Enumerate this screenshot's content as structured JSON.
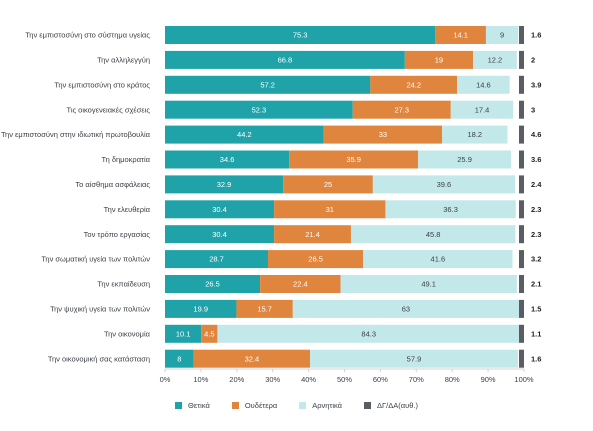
{
  "chart_data": {
    "type": "bar",
    "orientation": "horizontal",
    "stacked": true,
    "title": "",
    "xlabel": "",
    "ylabel": "",
    "xlim": [
      0,
      100
    ],
    "x_ticks": [
      "0%",
      "10%",
      "20%",
      "30%",
      "40%",
      "50%",
      "60%",
      "70%",
      "80%",
      "90%",
      "100%"
    ],
    "categories": [
      "Την εμπιστοσύνη στο σύστημα υγείας",
      "Την αλληλεγγύη",
      "Την εμπιστοσύνη στο κράτος",
      "Τις οικογενειακές σχέσεις",
      "Την εμπιστοσύνη στην ιδιωτική πρωτοβουλία",
      "Τη δημοκρατία",
      "Το αίσθημα ασφάλειας",
      "Την ελευθερία",
      "Τον τρόπο εργασίας",
      "Την σωματική υγεία των πολιτών",
      "Την εκπαίδευση",
      "Την ψυχική υγεία των πολιτών",
      "Την οικονομία",
      "Την οικονομική σας κατάσταση"
    ],
    "series": [
      {
        "name": "Θετικά",
        "color": "#1fa2a8",
        "values": [
          75.3,
          66.8,
          57.2,
          52.3,
          44.2,
          34.6,
          32.9,
          30.4,
          30.4,
          28.7,
          26.5,
          19.9,
          10.1,
          8
        ]
      },
      {
        "name": "Ουδέτερα",
        "color": "#df853d",
        "values": [
          14.1,
          19,
          24.2,
          27.3,
          33,
          35.9,
          25,
          31,
          21.4,
          26.5,
          22.4,
          15.7,
          4.5,
          32.4
        ]
      },
      {
        "name": "Αρνητικά",
        "color": "#c3e8ea",
        "values": [
          9,
          12.2,
          14.6,
          17.4,
          18.2,
          25.9,
          39.6,
          36.3,
          45.8,
          41.6,
          49.1,
          63,
          84.3,
          57.9
        ]
      },
      {
        "name": "ΔΓ/ΔΑ(αυθ.)",
        "color": "#5a5d63",
        "values": [
          1.6,
          2,
          3.9,
          3,
          4.6,
          3.6,
          2.4,
          2.3,
          2.3,
          3.2,
          2.1,
          1.5,
          1.1,
          1.6
        ]
      }
    ],
    "legend_position": "bottom",
    "grid": false
  }
}
